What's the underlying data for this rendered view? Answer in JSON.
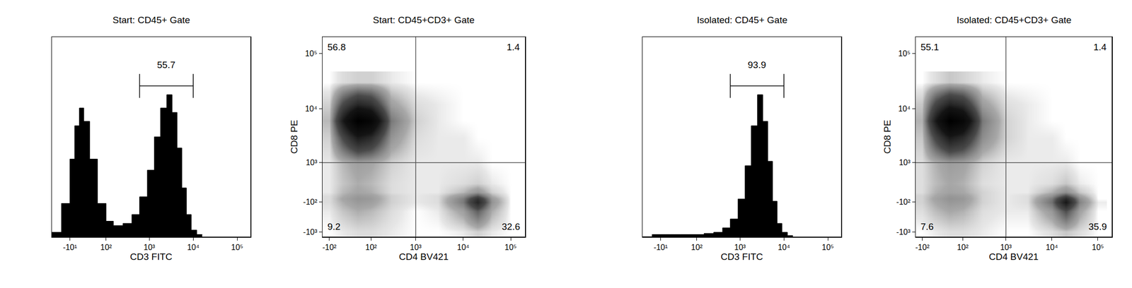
{
  "chart_data": [
    {
      "type": "histogram",
      "title": "Start: CD45+ Gate",
      "x_label": "CD3 FITC",
      "xlim": [
        -60,
        200000
      ],
      "xticks": [
        {
          "value": -10,
          "label": "-10¹"
        },
        {
          "value": 100,
          "label": "10²"
        },
        {
          "value": 1000,
          "label": "10³"
        },
        {
          "value": 10000,
          "label": "10⁴"
        },
        {
          "value": 100000,
          "label": "10⁵"
        }
      ],
      "ylim": [
        0,
        90
      ],
      "tick_labels": "x",
      "color": "#000000",
      "bins": [
        -60,
        -30,
        -10,
        0,
        10,
        20,
        35,
        60,
        100,
        150,
        250,
        400,
        600,
        900,
        1300,
        1800,
        2500,
        3300,
        4300,
        5500,
        7000,
        9000,
        12000,
        16000
      ],
      "counts": [
        2,
        15,
        35,
        50,
        58,
        52,
        35,
        15,
        7,
        5,
        6,
        10,
        18,
        30,
        45,
        58,
        64,
        56,
        40,
        22,
        10,
        3,
        1
      ],
      "gate": {
        "range": [
          600,
          10000
        ],
        "percent": 55.7
      }
    },
    {
      "type": "density",
      "title": "Start: CD45+CD3+ Gate",
      "x_label": "CD4 BV421",
      "y_label": "CD8 PE",
      "xlim": [
        -150,
        200000
      ],
      "xticks": [
        {
          "value": -100,
          "label": "-10²"
        },
        {
          "value": 100,
          "label": "10²"
        },
        {
          "value": 1000,
          "label": "10³"
        },
        {
          "value": 10000,
          "label": "10⁴"
        },
        {
          "value": 100000,
          "label": "10⁵"
        }
      ],
      "ylim": [
        -1250,
        200000
      ],
      "yticks": [
        {
          "value": -1000,
          "label": "-10³"
        },
        {
          "value": -100,
          "label": "-10²"
        },
        {
          "value": 1000,
          "label": "10³"
        },
        {
          "value": 10000,
          "label": "10⁴"
        },
        {
          "value": 100000,
          "label": "10⁵"
        }
      ],
      "quadrant_gate": {
        "x": 1000,
        "y": 1000
      },
      "quadrants": {
        "upper_left": 56.8,
        "upper_right": 1.4,
        "lower_left": 9.2,
        "lower_right": 32.6
      },
      "density": {
        "x": [
          -100,
          -30,
          30,
          100,
          300,
          1000,
          3000,
          10000,
          20000,
          40000,
          100000
        ],
        "y": [
          -1000,
          -300,
          -100,
          -30,
          30,
          100,
          300,
          1000,
          3000,
          6000,
          12000,
          30000
        ],
        "z": [
          [
            0,
            1,
            2,
            2,
            1,
            0,
            0,
            1,
            3,
            1,
            0
          ],
          [
            1,
            4,
            6,
            5,
            2,
            0,
            1,
            8,
            20,
            6,
            0
          ],
          [
            2,
            6,
            9,
            8,
            3,
            1,
            2,
            15,
            40,
            10,
            0
          ],
          [
            2,
            7,
            10,
            9,
            3,
            1,
            2,
            14,
            35,
            9,
            0
          ],
          [
            2,
            6,
            9,
            8,
            3,
            1,
            2,
            10,
            22,
            6,
            0
          ],
          [
            1,
            5,
            7,
            6,
            2,
            1,
            1,
            5,
            10,
            3,
            0
          ],
          [
            1,
            4,
            6,
            5,
            2,
            1,
            1,
            2,
            3,
            1,
            0
          ],
          [
            1,
            5,
            8,
            7,
            3,
            1,
            1,
            1,
            1,
            0,
            0
          ],
          [
            3,
            25,
            45,
            38,
            10,
            2,
            1,
            1,
            0,
            0,
            0
          ],
          [
            5,
            45,
            80,
            70,
            15,
            3,
            1,
            0,
            0,
            0,
            0
          ],
          [
            3,
            25,
            40,
            35,
            8,
            2,
            1,
            0,
            0,
            0,
            0
          ],
          [
            0,
            2,
            3,
            3,
            1,
            0,
            0,
            0,
            0,
            0,
            0
          ]
        ]
      }
    },
    {
      "type": "histogram",
      "title": "Isolated: CD45+ Gate",
      "x_label": "CD3 FITC",
      "xlim": [
        -60,
        200000
      ],
      "xticks": [
        {
          "value": -10,
          "label": "-10¹"
        },
        {
          "value": 100,
          "label": "10²"
        },
        {
          "value": 1000,
          "label": "10³"
        },
        {
          "value": 10000,
          "label": "10⁴"
        },
        {
          "value": 100000,
          "label": "10⁵"
        }
      ],
      "ylim": [
        0,
        90
      ],
      "tick_labels": "x",
      "color": "#000000",
      "bins": [
        -60,
        -30,
        -10,
        0,
        10,
        20,
        35,
        60,
        100,
        150,
        250,
        400,
        600,
        900,
        1300,
        1800,
        2500,
        3300,
        4300,
        5500,
        7000,
        9000,
        12000,
        16000
      ],
      "counts": [
        0,
        1,
        1,
        1,
        1,
        1,
        1,
        1,
        1,
        1.5,
        2,
        4,
        8,
        17,
        32,
        50,
        64,
        52,
        34,
        16,
        6,
        2,
        0.5
      ],
      "gate": {
        "range": [
          600,
          10000
        ],
        "percent": 93.9
      }
    },
    {
      "type": "density",
      "title": "Isolated: CD45+CD3+ Gate",
      "x_label": "CD4 BV421",
      "y_label": "CD8 PE",
      "xlim": [
        -150,
        200000
      ],
      "xticks": [
        {
          "value": -100,
          "label": "-10²"
        },
        {
          "value": 100,
          "label": "10²"
        },
        {
          "value": 1000,
          "label": "10³"
        },
        {
          "value": 10000,
          "label": "10⁴"
        },
        {
          "value": 100000,
          "label": "10⁵"
        }
      ],
      "ylim": [
        -1250,
        200000
      ],
      "yticks": [
        {
          "value": -1000,
          "label": "-10³"
        },
        {
          "value": -100,
          "label": "-10²"
        },
        {
          "value": 1000,
          "label": "10³"
        },
        {
          "value": 10000,
          "label": "10⁴"
        },
        {
          "value": 100000,
          "label": "10⁵"
        }
      ],
      "quadrant_gate": {
        "x": 1000,
        "y": 1000
      },
      "quadrants": {
        "upper_left": 55.1,
        "upper_right": 1.4,
        "lower_left": 7.6,
        "lower_right": 35.9
      },
      "density": {
        "x": [
          -100,
          -30,
          30,
          100,
          300,
          1000,
          3000,
          10000,
          20000,
          40000,
          100000
        ],
        "y": [
          -1000,
          -300,
          -100,
          -30,
          30,
          100,
          300,
          1000,
          3000,
          6000,
          12000,
          30000
        ],
        "z": [
          [
            0,
            1,
            2,
            2,
            1,
            0,
            0,
            2,
            4,
            2,
            0
          ],
          [
            2,
            5,
            7,
            6,
            2,
            1,
            1,
            10,
            25,
            8,
            0
          ],
          [
            3,
            7,
            10,
            9,
            3,
            1,
            2,
            18,
            50,
            14,
            1
          ],
          [
            3,
            8,
            11,
            10,
            3,
            1,
            2,
            16,
            42,
            12,
            0
          ],
          [
            3,
            7,
            10,
            9,
            3,
            1,
            2,
            11,
            26,
            8,
            0
          ],
          [
            2,
            6,
            8,
            7,
            3,
            1,
            1,
            6,
            12,
            4,
            0
          ],
          [
            2,
            5,
            7,
            6,
            2,
            1,
            1,
            2,
            4,
            1,
            0
          ],
          [
            2,
            6,
            9,
            8,
            3,
            1,
            1,
            1,
            1,
            0,
            0
          ],
          [
            4,
            28,
            48,
            40,
            12,
            3,
            1,
            1,
            0,
            0,
            0
          ],
          [
            6,
            48,
            85,
            72,
            16,
            3,
            1,
            0,
            0,
            0,
            0
          ],
          [
            4,
            28,
            44,
            38,
            9,
            2,
            1,
            0,
            0,
            0,
            0
          ],
          [
            0,
            2,
            4,
            3,
            1,
            0,
            0,
            0,
            0,
            0,
            0
          ]
        ]
      }
    }
  ]
}
